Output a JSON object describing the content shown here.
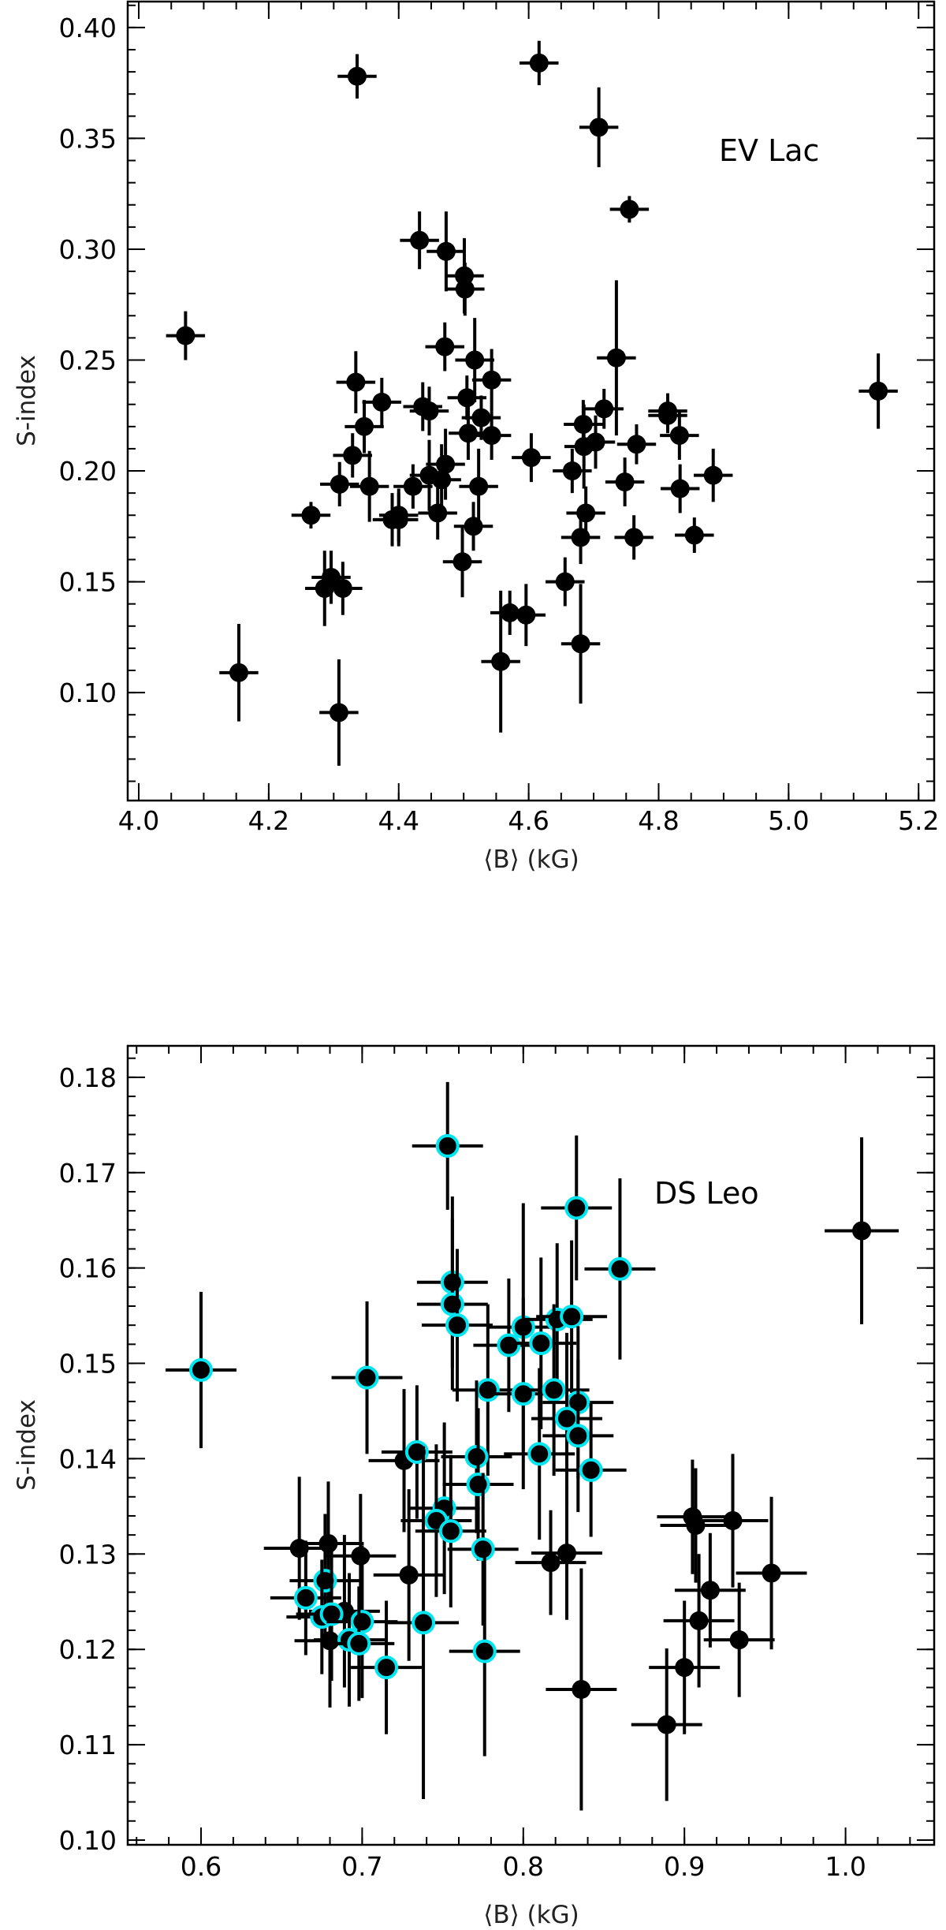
{
  "chart_data": [
    {
      "type": "scatter",
      "label": "EV Lac",
      "xlabel": "⟨B⟩ (kG)",
      "ylabel": "S-index",
      "xlim": [
        3.983,
        5.224
      ],
      "ylim": [
        0.0513,
        0.4117
      ],
      "xticks": [
        4.0,
        4.2,
        4.4,
        4.6,
        4.8,
        5.0,
        5.2
      ],
      "xtick_labels": [
        "4.0",
        "4.2",
        "4.4",
        "4.6",
        "4.8",
        "5.0",
        "5.2"
      ],
      "xminor_step": 0.05,
      "yticks": [
        0.1,
        0.15,
        0.2,
        0.25,
        0.3,
        0.35,
        0.4
      ],
      "ytick_labels": [
        "0.10",
        "0.15",
        "0.20",
        "0.25",
        "0.30",
        "0.35",
        "0.40"
      ],
      "yminor_step": 0.01,
      "grid": false,
      "marker_color": "#000000",
      "point_format": [
        "x",
        "y",
        "xerr",
        "yerr"
      ],
      "series": [
        {
          "points": [
            [
              4.336,
              0.378,
              0.03,
              0.01
            ],
            [
              4.616,
              0.384,
              0.03,
              0.01
            ],
            [
              4.708,
              0.355,
              0.03,
              0.018
            ],
            [
              4.755,
              0.318,
              0.03,
              0.006
            ],
            [
              4.072,
              0.261,
              0.03,
              0.011
            ],
            [
              4.432,
              0.304,
              0.03,
              0.013
            ],
            [
              4.473,
              0.299,
              0.03,
              0.018
            ],
            [
              4.501,
              0.288,
              0.03,
              0.017
            ],
            [
              4.502,
              0.282,
              0.03,
              0.012
            ],
            [
              4.471,
              0.256,
              0.03,
              0.011
            ],
            [
              4.517,
              0.25,
              0.03,
              0.019
            ],
            [
              4.543,
              0.241,
              0.03,
              0.014
            ],
            [
              4.334,
              0.24,
              0.03,
              0.014
            ],
            [
              4.374,
              0.231,
              0.03,
              0.011
            ],
            [
              4.437,
              0.229,
              0.03,
              0.011
            ],
            [
              4.447,
              0.227,
              0.03,
              0.011
            ],
            [
              4.505,
              0.233,
              0.03,
              0.01
            ],
            [
              4.527,
              0.224,
              0.03,
              0.01
            ],
            [
              4.347,
              0.22,
              0.03,
              0.012
            ],
            [
              4.507,
              0.217,
              0.03,
              0.012
            ],
            [
              4.543,
              0.216,
              0.03,
              0.011
            ],
            [
              4.329,
              0.207,
              0.03,
              0.01
            ],
            [
              4.309,
              0.194,
              0.03,
              0.01
            ],
            [
              4.355,
              0.193,
              0.03,
              0.016
            ],
            [
              4.422,
              0.193,
              0.03,
              0.01
            ],
            [
              4.447,
              0.198,
              0.03,
              0.016
            ],
            [
              4.472,
              0.203,
              0.03,
              0.016
            ],
            [
              4.466,
              0.196,
              0.03,
              0.016
            ],
            [
              4.523,
              0.193,
              0.03,
              0.017
            ],
            [
              4.604,
              0.206,
              0.03,
              0.011
            ],
            [
              4.265,
              0.18,
              0.03,
              0.006
            ],
            [
              4.39,
              0.178,
              0.03,
              0.012
            ],
            [
              4.4,
              0.18,
              0.03,
              0.012
            ],
            [
              4.4,
              0.178,
              0.03,
              0.012
            ],
            [
              4.46,
              0.181,
              0.03,
              0.012
            ],
            [
              4.515,
              0.175,
              0.03,
              0.011
            ],
            [
              4.498,
              0.159,
              0.03,
              0.016
            ],
            [
              4.286,
              0.147,
              0.03,
              0.017
            ],
            [
              4.296,
              0.152,
              0.03,
              0.012
            ],
            [
              4.314,
              0.147,
              0.03,
              0.012
            ],
            [
              4.154,
              0.109,
              0.03,
              0.022
            ],
            [
              4.308,
              0.091,
              0.03,
              0.024
            ],
            [
              4.557,
              0.114,
              0.03,
              0.032
            ],
            [
              4.571,
              0.136,
              0.03,
              0.01
            ],
            [
              4.596,
              0.135,
              0.03,
              0.014
            ],
            [
              4.656,
              0.15,
              0.03,
              0.011
            ],
            [
              4.68,
              0.122,
              0.03,
              0.027
            ],
            [
              4.68,
              0.17,
              0.03,
              0.012
            ],
            [
              4.688,
              0.181,
              0.03,
              0.012
            ],
            [
              4.667,
              0.2,
              0.03,
              0.01
            ],
            [
              4.685,
              0.211,
              0.03,
              0.019
            ],
            [
              4.684,
              0.221,
              0.03,
              0.011
            ],
            [
              4.703,
              0.213,
              0.03,
              0.012
            ],
            [
              4.716,
              0.228,
              0.03,
              0.009
            ],
            [
              4.735,
              0.251,
              0.03,
              0.035
            ],
            [
              4.748,
              0.195,
              0.03,
              0.011
            ],
            [
              4.762,
              0.17,
              0.03,
              0.01
            ],
            [
              4.766,
              0.212,
              0.03,
              0.009
            ],
            [
              4.814,
              0.227,
              0.03,
              0.008
            ],
            [
              4.814,
              0.225,
              0.03,
              0.008
            ],
            [
              4.832,
              0.216,
              0.03,
              0.011
            ],
            [
              4.833,
              0.192,
              0.03,
              0.011
            ],
            [
              4.855,
              0.171,
              0.03,
              0.008
            ],
            [
              4.884,
              0.198,
              0.03,
              0.012
            ],
            [
              5.138,
              0.236,
              0.03,
              0.017
            ]
          ]
        }
      ]
    },
    {
      "type": "scatter",
      "label": "DS Leo",
      "xlabel": "⟨B⟩ (kG)",
      "ylabel": "S-index",
      "xlim": [
        0.5545,
        1.055
      ],
      "ylim": [
        0.0995,
        0.1833
      ],
      "xticks": [
        0.6,
        0.7,
        0.8,
        0.9,
        1.0
      ],
      "xtick_labels": [
        "0.6",
        "0.7",
        "0.8",
        "0.9",
        "1.0"
      ],
      "xminor_step": 0.02,
      "yticks": [
        0.1,
        0.11,
        0.12,
        0.13,
        0.14,
        0.15,
        0.16,
        0.17,
        0.18
      ],
      "ytick_labels": [
        "0.10",
        "0.11",
        "0.12",
        "0.13",
        "0.14",
        "0.15",
        "0.16",
        "0.17",
        "0.18"
      ],
      "yminor_step": 0.002,
      "grid": false,
      "highlight_color": "#00e5f0",
      "marker_color": "#000000",
      "point_format": [
        "x",
        "y",
        "xerr",
        "yerr"
      ],
      "series": [
        {
          "style": "black",
          "points": [
            [
              1.01,
              0.1639,
              0.023,
              0.0098
            ],
            [
              0.661,
              0.1306,
              0.022,
              0.0075
            ],
            [
              0.679,
              0.1311,
              0.022,
              0.0065
            ],
            [
              0.699,
              0.1298,
              0.022,
              0.0065
            ],
            [
              0.726,
              0.1398,
              0.022,
              0.0075
            ],
            [
              0.729,
              0.1278,
              0.022,
              0.009
            ],
            [
              0.689,
              0.124,
              0.022,
              0.008
            ],
            [
              0.68,
              0.1209,
              0.022,
              0.007
            ],
            [
              0.817,
              0.1291,
              0.022,
              0.0055
            ],
            [
              0.827,
              0.1301,
              0.022,
              0.007
            ],
            [
              0.836,
              0.1158,
              0.022,
              0.0127
            ],
            [
              0.905,
              0.1339,
              0.022,
              0.006
            ],
            [
              0.907,
              0.133,
              0.022,
              0.006
            ],
            [
              0.93,
              0.1335,
              0.022,
              0.007
            ],
            [
              0.954,
              0.128,
              0.022,
              0.008
            ],
            [
              0.916,
              0.1262,
              0.022,
              0.006
            ],
            [
              0.909,
              0.123,
              0.022,
              0.007
            ],
            [
              0.934,
              0.121,
              0.022,
              0.006
            ],
            [
              0.9,
              0.1181,
              0.022,
              0.007
            ],
            [
              0.889,
              0.1121,
              0.022,
              0.008
            ]
          ]
        },
        {
          "style": "cyan-ring",
          "points": [
            [
              0.6,
              0.1493,
              0.022,
              0.0082
            ],
            [
              0.703,
              0.1485,
              0.022,
              0.008
            ],
            [
              0.753,
              0.1728,
              0.022,
              0.0067
            ],
            [
              0.833,
              0.1663,
              0.022,
              0.0076
            ],
            [
              0.86,
              0.1599,
              0.022,
              0.0095
            ],
            [
              0.756,
              0.1585,
              0.022,
              0.009
            ],
            [
              0.756,
              0.1562,
              0.022,
              0.009
            ],
            [
              0.759,
              0.154,
              0.022,
              0.008
            ],
            [
              0.8,
              0.1538,
              0.022,
              0.013
            ],
            [
              0.791,
              0.1519,
              0.022,
              0.007
            ],
            [
              0.811,
              0.1521,
              0.022,
              0.009
            ],
            [
              0.821,
              0.1546,
              0.022,
              0.008
            ],
            [
              0.83,
              0.1549,
              0.022,
              0.008
            ],
            [
              0.778,
              0.1472,
              0.022,
              0.009
            ],
            [
              0.8,
              0.1468,
              0.022,
              0.01
            ],
            [
              0.819,
              0.1472,
              0.022,
              0.009
            ],
            [
              0.834,
              0.1459,
              0.022,
              0.008
            ],
            [
              0.827,
              0.1442,
              0.022,
              0.009
            ],
            [
              0.834,
              0.1424,
              0.022,
              0.008
            ],
            [
              0.81,
              0.1405,
              0.022,
              0.009
            ],
            [
              0.734,
              0.1407,
              0.022,
              0.007
            ],
            [
              0.771,
              0.1402,
              0.022,
              0.008
            ],
            [
              0.772,
              0.1373,
              0.022,
              0.008
            ],
            [
              0.842,
              0.1388,
              0.022,
              0.007
            ],
            [
              0.751,
              0.1348,
              0.022,
              0.009
            ],
            [
              0.746,
              0.1335,
              0.022,
              0.008
            ],
            [
              0.755,
              0.1324,
              0.022,
              0.008
            ],
            [
              0.775,
              0.1305,
              0.022,
              0.008
            ],
            [
              0.677,
              0.1272,
              0.022,
              0.007
            ],
            [
              0.665,
              0.1254,
              0.022,
              0.006
            ],
            [
              0.675,
              0.1234,
              0.022,
              0.006
            ],
            [
              0.681,
              0.1237,
              0.022,
              0.007
            ],
            [
              0.7,
              0.1229,
              0.022,
              0.008
            ],
            [
              0.692,
              0.121,
              0.022,
              0.007
            ],
            [
              0.698,
              0.1206,
              0.022,
              0.006
            ],
            [
              0.738,
              0.1228,
              0.022,
              0.0185
            ],
            [
              0.715,
              0.1181,
              0.022,
              0.007
            ],
            [
              0.776,
              0.1198,
              0.022,
              0.011
            ]
          ]
        }
      ]
    }
  ]
}
